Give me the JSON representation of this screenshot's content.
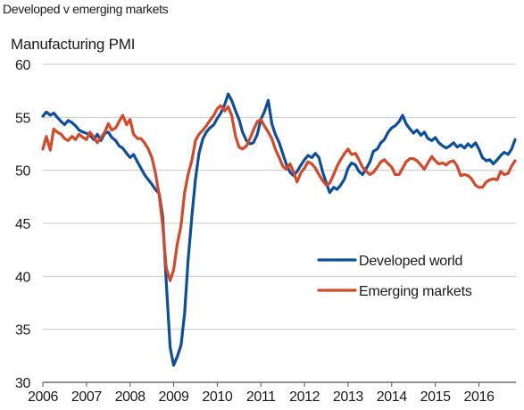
{
  "title": "Developed v emerging markets",
  "chart_data": {
    "type": "line",
    "title": "Developed v emerging markets",
    "ylabel": "Manufacturing PMI",
    "xlabel": "",
    "ylim": [
      30,
      60
    ],
    "xlim": [
      2006,
      2016.85
    ],
    "y_ticks": [
      "30",
      "35",
      "40",
      "45",
      "50",
      "55",
      "60"
    ],
    "x_ticks": [
      "2006",
      "2007",
      "2008",
      "2009",
      "2010",
      "2011",
      "2012",
      "2013",
      "2014",
      "2015",
      "2016"
    ],
    "grid": "horizontal",
    "legend_position": "lower-right",
    "series": [
      {
        "name": "Developed world",
        "color": "#0d4f9a",
        "points": [
          [
            2006.0,
            55.1
          ],
          [
            2006.08,
            55.5
          ],
          [
            2006.17,
            55.2
          ],
          [
            2006.25,
            55.4
          ],
          [
            2006.33,
            55.0
          ],
          [
            2006.42,
            54.6
          ],
          [
            2006.5,
            54.3
          ],
          [
            2006.58,
            54.7
          ],
          [
            2006.67,
            54.5
          ],
          [
            2006.75,
            54.2
          ],
          [
            2006.83,
            53.8
          ],
          [
            2006.92,
            53.6
          ],
          [
            2007.0,
            53.5
          ],
          [
            2007.08,
            53.3
          ],
          [
            2007.17,
            52.9
          ],
          [
            2007.25,
            53.4
          ],
          [
            2007.33,
            52.8
          ],
          [
            2007.42,
            53.5
          ],
          [
            2007.5,
            53.6
          ],
          [
            2007.58,
            53.1
          ],
          [
            2007.67,
            52.8
          ],
          [
            2007.75,
            52.3
          ],
          [
            2007.83,
            52.1
          ],
          [
            2007.92,
            51.6
          ],
          [
            2008.0,
            51.2
          ],
          [
            2008.08,
            51.5
          ],
          [
            2008.17,
            50.8
          ],
          [
            2008.25,
            50.2
          ],
          [
            2008.33,
            49.6
          ],
          [
            2008.42,
            49.1
          ],
          [
            2008.5,
            48.7
          ],
          [
            2008.58,
            48.2
          ],
          [
            2008.67,
            47.8
          ],
          [
            2008.75,
            45.6
          ],
          [
            2008.83,
            39.5
          ],
          [
            2008.92,
            33.3
          ],
          [
            2009.0,
            31.6
          ],
          [
            2009.08,
            32.4
          ],
          [
            2009.17,
            33.5
          ],
          [
            2009.25,
            36.5
          ],
          [
            2009.33,
            41.5
          ],
          [
            2009.42,
            45.8
          ],
          [
            2009.5,
            49.2
          ],
          [
            2009.58,
            51.6
          ],
          [
            2009.67,
            53.0
          ],
          [
            2009.75,
            53.6
          ],
          [
            2009.83,
            54.0
          ],
          [
            2009.92,
            54.3
          ],
          [
            2010.0,
            54.9
          ],
          [
            2010.08,
            55.4
          ],
          [
            2010.17,
            56.2
          ],
          [
            2010.25,
            57.2
          ],
          [
            2010.33,
            56.6
          ],
          [
            2010.42,
            55.6
          ],
          [
            2010.5,
            54.8
          ],
          [
            2010.58,
            53.6
          ],
          [
            2010.67,
            52.8
          ],
          [
            2010.75,
            52.5
          ],
          [
            2010.83,
            52.6
          ],
          [
            2010.92,
            53.4
          ],
          [
            2011.0,
            54.8
          ],
          [
            2011.08,
            55.5
          ],
          [
            2011.17,
            56.6
          ],
          [
            2011.25,
            54.4
          ],
          [
            2011.33,
            53.4
          ],
          [
            2011.42,
            52.6
          ],
          [
            2011.5,
            51.6
          ],
          [
            2011.58,
            50.6
          ],
          [
            2011.67,
            49.8
          ],
          [
            2011.75,
            49.5
          ],
          [
            2011.83,
            49.9
          ],
          [
            2011.92,
            50.5
          ],
          [
            2012.0,
            51.0
          ],
          [
            2012.08,
            51.4
          ],
          [
            2012.17,
            51.2
          ],
          [
            2012.25,
            51.6
          ],
          [
            2012.33,
            51.2
          ],
          [
            2012.42,
            49.8
          ],
          [
            2012.5,
            48.8
          ],
          [
            2012.58,
            47.9
          ],
          [
            2012.67,
            48.4
          ],
          [
            2012.75,
            48.2
          ],
          [
            2012.83,
            48.6
          ],
          [
            2012.92,
            49.2
          ],
          [
            2013.0,
            50.2
          ],
          [
            2013.08,
            50.7
          ],
          [
            2013.17,
            50.5
          ],
          [
            2013.25,
            49.9
          ],
          [
            2013.33,
            49.6
          ],
          [
            2013.42,
            50.2
          ],
          [
            2013.5,
            50.8
          ],
          [
            2013.58,
            51.8
          ],
          [
            2013.67,
            52.0
          ],
          [
            2013.75,
            52.6
          ],
          [
            2013.83,
            52.9
          ],
          [
            2013.92,
            53.6
          ],
          [
            2014.0,
            54.0
          ],
          [
            2014.08,
            54.2
          ],
          [
            2014.17,
            54.6
          ],
          [
            2014.25,
            55.2
          ],
          [
            2014.33,
            54.4
          ],
          [
            2014.42,
            53.9
          ],
          [
            2014.5,
            53.5
          ],
          [
            2014.58,
            53.8
          ],
          [
            2014.67,
            53.3
          ],
          [
            2014.75,
            53.6
          ],
          [
            2014.83,
            53.0
          ],
          [
            2014.92,
            52.8
          ],
          [
            2015.0,
            53.1
          ],
          [
            2015.08,
            52.6
          ],
          [
            2015.17,
            52.3
          ],
          [
            2015.25,
            52.1
          ],
          [
            2015.33,
            52.3
          ],
          [
            2015.42,
            52.6
          ],
          [
            2015.5,
            52.2
          ],
          [
            2015.58,
            52.4
          ],
          [
            2015.67,
            52.1
          ],
          [
            2015.75,
            52.5
          ],
          [
            2015.83,
            52.2
          ],
          [
            2015.92,
            52.6
          ],
          [
            2016.0,
            52.0
          ],
          [
            2016.08,
            51.2
          ],
          [
            2016.17,
            50.9
          ],
          [
            2016.25,
            51.0
          ],
          [
            2016.33,
            50.6
          ],
          [
            2016.42,
            51.0
          ],
          [
            2016.5,
            51.4
          ],
          [
            2016.58,
            51.7
          ],
          [
            2016.67,
            51.5
          ],
          [
            2016.75,
            52.0
          ],
          [
            2016.83,
            52.9
          ]
        ]
      },
      {
        "name": "Emerging markets",
        "color": "#d4492a",
        "points": [
          [
            2006.0,
            52.0
          ],
          [
            2006.08,
            53.2
          ],
          [
            2006.17,
            51.9
          ],
          [
            2006.25,
            53.9
          ],
          [
            2006.33,
            53.6
          ],
          [
            2006.42,
            53.4
          ],
          [
            2006.5,
            53.0
          ],
          [
            2006.58,
            52.8
          ],
          [
            2006.67,
            53.2
          ],
          [
            2006.75,
            52.9
          ],
          [
            2006.83,
            53.4
          ],
          [
            2006.92,
            53.1
          ],
          [
            2007.0,
            52.9
          ],
          [
            2007.08,
            53.6
          ],
          [
            2007.17,
            53.1
          ],
          [
            2007.25,
            52.6
          ],
          [
            2007.33,
            53.1
          ],
          [
            2007.42,
            53.6
          ],
          [
            2007.5,
            54.4
          ],
          [
            2007.58,
            53.8
          ],
          [
            2007.67,
            54.0
          ],
          [
            2007.75,
            54.6
          ],
          [
            2007.83,
            55.2
          ],
          [
            2007.92,
            54.3
          ],
          [
            2008.0,
            54.8
          ],
          [
            2008.08,
            53.4
          ],
          [
            2008.17,
            53.0
          ],
          [
            2008.25,
            53.0
          ],
          [
            2008.33,
            52.6
          ],
          [
            2008.42,
            52.0
          ],
          [
            2008.5,
            51.2
          ],
          [
            2008.58,
            49.8
          ],
          [
            2008.67,
            47.6
          ],
          [
            2008.75,
            44.8
          ],
          [
            2008.83,
            40.8
          ],
          [
            2008.92,
            39.6
          ],
          [
            2009.0,
            40.6
          ],
          [
            2009.08,
            43.0
          ],
          [
            2009.17,
            44.8
          ],
          [
            2009.25,
            47.9
          ],
          [
            2009.33,
            49.6
          ],
          [
            2009.42,
            51.0
          ],
          [
            2009.5,
            52.8
          ],
          [
            2009.58,
            53.4
          ],
          [
            2009.67,
            53.8
          ],
          [
            2009.75,
            54.2
          ],
          [
            2009.83,
            54.7
          ],
          [
            2009.92,
            55.2
          ],
          [
            2010.0,
            55.8
          ],
          [
            2010.08,
            56.1
          ],
          [
            2010.17,
            55.6
          ],
          [
            2010.25,
            56.0
          ],
          [
            2010.33,
            55.2
          ],
          [
            2010.42,
            53.2
          ],
          [
            2010.5,
            52.2
          ],
          [
            2010.58,
            52.0
          ],
          [
            2010.67,
            52.3
          ],
          [
            2010.75,
            53.0
          ],
          [
            2010.83,
            53.8
          ],
          [
            2010.92,
            54.6
          ],
          [
            2011.0,
            54.8
          ],
          [
            2011.08,
            54.2
          ],
          [
            2011.17,
            53.6
          ],
          [
            2011.25,
            53.0
          ],
          [
            2011.33,
            52.0
          ],
          [
            2011.42,
            51.2
          ],
          [
            2011.5,
            50.4
          ],
          [
            2011.58,
            50.1
          ],
          [
            2011.67,
            50.6
          ],
          [
            2011.75,
            49.8
          ],
          [
            2011.83,
            48.9
          ],
          [
            2011.92,
            49.8
          ],
          [
            2012.0,
            50.2
          ],
          [
            2012.08,
            50.8
          ],
          [
            2012.17,
            50.6
          ],
          [
            2012.25,
            50.2
          ],
          [
            2012.33,
            49.6
          ],
          [
            2012.42,
            49.0
          ],
          [
            2012.5,
            48.6
          ],
          [
            2012.58,
            48.8
          ],
          [
            2012.67,
            49.6
          ],
          [
            2012.75,
            50.4
          ],
          [
            2012.83,
            51.0
          ],
          [
            2012.92,
            51.6
          ],
          [
            2013.0,
            52.0
          ],
          [
            2013.08,
            51.5
          ],
          [
            2013.17,
            51.6
          ],
          [
            2013.25,
            51.0
          ],
          [
            2013.33,
            50.3
          ],
          [
            2013.42,
            49.9
          ],
          [
            2013.5,
            49.6
          ],
          [
            2013.58,
            49.8
          ],
          [
            2013.67,
            50.3
          ],
          [
            2013.75,
            50.8
          ],
          [
            2013.83,
            51.0
          ],
          [
            2013.92,
            50.6
          ],
          [
            2014.0,
            50.3
          ],
          [
            2014.08,
            49.6
          ],
          [
            2014.17,
            49.6
          ],
          [
            2014.25,
            50.2
          ],
          [
            2014.33,
            50.8
          ],
          [
            2014.42,
            51.1
          ],
          [
            2014.5,
            51.1
          ],
          [
            2014.58,
            50.9
          ],
          [
            2014.67,
            50.5
          ],
          [
            2014.75,
            50.1
          ],
          [
            2014.83,
            50.7
          ],
          [
            2014.92,
            51.3
          ],
          [
            2015.0,
            50.9
          ],
          [
            2015.08,
            50.6
          ],
          [
            2015.17,
            50.7
          ],
          [
            2015.25,
            50.5
          ],
          [
            2015.33,
            50.8
          ],
          [
            2015.42,
            50.9
          ],
          [
            2015.5,
            50.4
          ],
          [
            2015.58,
            49.5
          ],
          [
            2015.67,
            49.6
          ],
          [
            2015.75,
            49.5
          ],
          [
            2015.83,
            49.2
          ],
          [
            2015.92,
            48.6
          ],
          [
            2016.0,
            48.4
          ],
          [
            2016.08,
            48.4
          ],
          [
            2016.17,
            48.9
          ],
          [
            2016.25,
            49.1
          ],
          [
            2016.33,
            49.2
          ],
          [
            2016.42,
            49.1
          ],
          [
            2016.5,
            49.9
          ],
          [
            2016.58,
            49.6
          ],
          [
            2016.67,
            49.7
          ],
          [
            2016.75,
            50.4
          ],
          [
            2016.83,
            50.9
          ]
        ]
      }
    ]
  }
}
